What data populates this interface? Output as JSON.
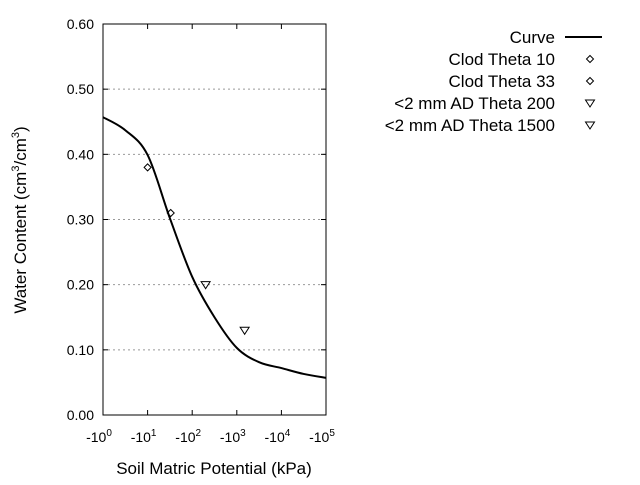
{
  "chart_data": {
    "type": "line",
    "xlabel": "Soil Matric Potential (kPa)",
    "ylabel": "Water Content (cm3/cm3)",
    "x_scale": "log (negative)",
    "xlim": [
      -1,
      -100000
    ],
    "ylim": [
      0.0,
      0.6
    ],
    "x_ticks": [
      {
        "base": "-10",
        "exp": "0"
      },
      {
        "base": "-10",
        "exp": "1"
      },
      {
        "base": "-10",
        "exp": "2"
      },
      {
        "base": "-10",
        "exp": "3"
      },
      {
        "base": "-10",
        "exp": "4"
      },
      {
        "base": "-10",
        "exp": "5"
      }
    ],
    "y_ticks": [
      "0.00",
      "0.10",
      "0.20",
      "0.30",
      "0.40",
      "0.50",
      "0.60"
    ],
    "grid": "horizontal dashed",
    "legend_position": "top-right",
    "series": [
      {
        "name": "Curve",
        "marker": "line",
        "color": "#000000",
        "x": [
          -1,
          -3.16,
          -10,
          -31.6,
          -100,
          -316,
          -1000,
          -3162,
          -10000,
          -31623,
          -100000
        ],
        "y": [
          0.457,
          0.437,
          0.399,
          0.302,
          0.212,
          0.15,
          0.103,
          0.081,
          0.072,
          0.063,
          0.057
        ]
      },
      {
        "name": "Clod Theta 10",
        "marker": "diamond",
        "x": [
          -10
        ],
        "y": [
          0.38
        ]
      },
      {
        "name": "Clod Theta 33",
        "marker": "diamond",
        "x": [
          -33
        ],
        "y": [
          0.31
        ]
      },
      {
        "name": "<2 mm AD Theta 200",
        "marker": "triangle-down",
        "x": [
          -200
        ],
        "y": [
          0.2
        ]
      },
      {
        "name": "<2 mm AD Theta 1500",
        "marker": "triangle-down",
        "x": [
          -1500
        ],
        "y": [
          0.13
        ]
      }
    ]
  }
}
